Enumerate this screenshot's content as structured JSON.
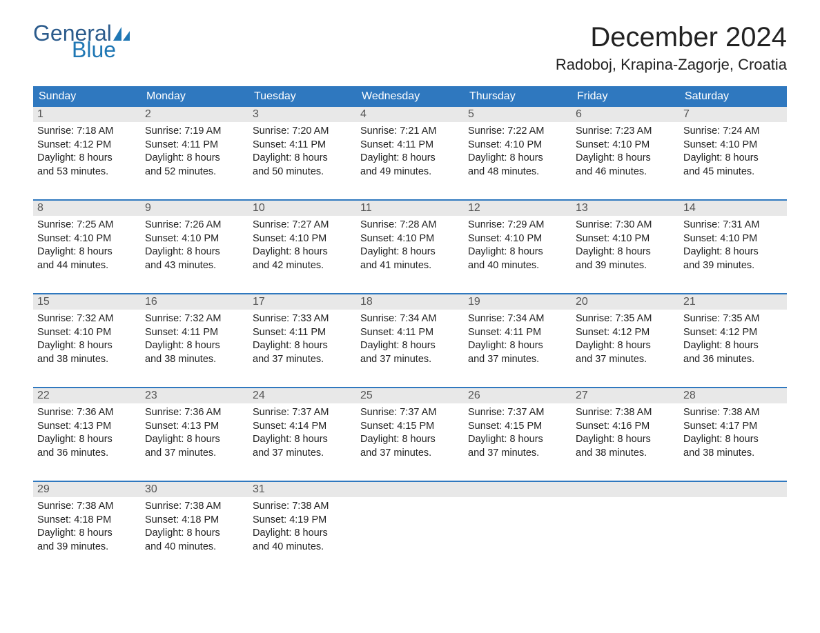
{
  "logo": {
    "word1": "General",
    "word2": "Blue",
    "brand_color": "#1f77b4",
    "dark_color": "#2b5b8c"
  },
  "title": "December 2024",
  "location": "Radoboj, Krapina-Zagorje, Croatia",
  "colors": {
    "header_bg": "#2f78bf",
    "header_text": "#ffffff",
    "daynum_bg": "#e8e8e8",
    "week_border": "#2f78bf",
    "text": "#222222"
  },
  "day_headers": [
    "Sunday",
    "Monday",
    "Tuesday",
    "Wednesday",
    "Thursday",
    "Friday",
    "Saturday"
  ],
  "weeks": [
    [
      {
        "n": "1",
        "sunrise": "Sunrise: 7:18 AM",
        "sunset": "Sunset: 4:12 PM",
        "day1": "Daylight: 8 hours",
        "day2": "and 53 minutes."
      },
      {
        "n": "2",
        "sunrise": "Sunrise: 7:19 AM",
        "sunset": "Sunset: 4:11 PM",
        "day1": "Daylight: 8 hours",
        "day2": "and 52 minutes."
      },
      {
        "n": "3",
        "sunrise": "Sunrise: 7:20 AM",
        "sunset": "Sunset: 4:11 PM",
        "day1": "Daylight: 8 hours",
        "day2": "and 50 minutes."
      },
      {
        "n": "4",
        "sunrise": "Sunrise: 7:21 AM",
        "sunset": "Sunset: 4:11 PM",
        "day1": "Daylight: 8 hours",
        "day2": "and 49 minutes."
      },
      {
        "n": "5",
        "sunrise": "Sunrise: 7:22 AM",
        "sunset": "Sunset: 4:10 PM",
        "day1": "Daylight: 8 hours",
        "day2": "and 48 minutes."
      },
      {
        "n": "6",
        "sunrise": "Sunrise: 7:23 AM",
        "sunset": "Sunset: 4:10 PM",
        "day1": "Daylight: 8 hours",
        "day2": "and 46 minutes."
      },
      {
        "n": "7",
        "sunrise": "Sunrise: 7:24 AM",
        "sunset": "Sunset: 4:10 PM",
        "day1": "Daylight: 8 hours",
        "day2": "and 45 minutes."
      }
    ],
    [
      {
        "n": "8",
        "sunrise": "Sunrise: 7:25 AM",
        "sunset": "Sunset: 4:10 PM",
        "day1": "Daylight: 8 hours",
        "day2": "and 44 minutes."
      },
      {
        "n": "9",
        "sunrise": "Sunrise: 7:26 AM",
        "sunset": "Sunset: 4:10 PM",
        "day1": "Daylight: 8 hours",
        "day2": "and 43 minutes."
      },
      {
        "n": "10",
        "sunrise": "Sunrise: 7:27 AM",
        "sunset": "Sunset: 4:10 PM",
        "day1": "Daylight: 8 hours",
        "day2": "and 42 minutes."
      },
      {
        "n": "11",
        "sunrise": "Sunrise: 7:28 AM",
        "sunset": "Sunset: 4:10 PM",
        "day1": "Daylight: 8 hours",
        "day2": "and 41 minutes."
      },
      {
        "n": "12",
        "sunrise": "Sunrise: 7:29 AM",
        "sunset": "Sunset: 4:10 PM",
        "day1": "Daylight: 8 hours",
        "day2": "and 40 minutes."
      },
      {
        "n": "13",
        "sunrise": "Sunrise: 7:30 AM",
        "sunset": "Sunset: 4:10 PM",
        "day1": "Daylight: 8 hours",
        "day2": "and 39 minutes."
      },
      {
        "n": "14",
        "sunrise": "Sunrise: 7:31 AM",
        "sunset": "Sunset: 4:10 PM",
        "day1": "Daylight: 8 hours",
        "day2": "and 39 minutes."
      }
    ],
    [
      {
        "n": "15",
        "sunrise": "Sunrise: 7:32 AM",
        "sunset": "Sunset: 4:10 PM",
        "day1": "Daylight: 8 hours",
        "day2": "and 38 minutes."
      },
      {
        "n": "16",
        "sunrise": "Sunrise: 7:32 AM",
        "sunset": "Sunset: 4:11 PM",
        "day1": "Daylight: 8 hours",
        "day2": "and 38 minutes."
      },
      {
        "n": "17",
        "sunrise": "Sunrise: 7:33 AM",
        "sunset": "Sunset: 4:11 PM",
        "day1": "Daylight: 8 hours",
        "day2": "and 37 minutes."
      },
      {
        "n": "18",
        "sunrise": "Sunrise: 7:34 AM",
        "sunset": "Sunset: 4:11 PM",
        "day1": "Daylight: 8 hours",
        "day2": "and 37 minutes."
      },
      {
        "n": "19",
        "sunrise": "Sunrise: 7:34 AM",
        "sunset": "Sunset: 4:11 PM",
        "day1": "Daylight: 8 hours",
        "day2": "and 37 minutes."
      },
      {
        "n": "20",
        "sunrise": "Sunrise: 7:35 AM",
        "sunset": "Sunset: 4:12 PM",
        "day1": "Daylight: 8 hours",
        "day2": "and 37 minutes."
      },
      {
        "n": "21",
        "sunrise": "Sunrise: 7:35 AM",
        "sunset": "Sunset: 4:12 PM",
        "day1": "Daylight: 8 hours",
        "day2": "and 36 minutes."
      }
    ],
    [
      {
        "n": "22",
        "sunrise": "Sunrise: 7:36 AM",
        "sunset": "Sunset: 4:13 PM",
        "day1": "Daylight: 8 hours",
        "day2": "and 36 minutes."
      },
      {
        "n": "23",
        "sunrise": "Sunrise: 7:36 AM",
        "sunset": "Sunset: 4:13 PM",
        "day1": "Daylight: 8 hours",
        "day2": "and 37 minutes."
      },
      {
        "n": "24",
        "sunrise": "Sunrise: 7:37 AM",
        "sunset": "Sunset: 4:14 PM",
        "day1": "Daylight: 8 hours",
        "day2": "and 37 minutes."
      },
      {
        "n": "25",
        "sunrise": "Sunrise: 7:37 AM",
        "sunset": "Sunset: 4:15 PM",
        "day1": "Daylight: 8 hours",
        "day2": "and 37 minutes."
      },
      {
        "n": "26",
        "sunrise": "Sunrise: 7:37 AM",
        "sunset": "Sunset: 4:15 PM",
        "day1": "Daylight: 8 hours",
        "day2": "and 37 minutes."
      },
      {
        "n": "27",
        "sunrise": "Sunrise: 7:38 AM",
        "sunset": "Sunset: 4:16 PM",
        "day1": "Daylight: 8 hours",
        "day2": "and 38 minutes."
      },
      {
        "n": "28",
        "sunrise": "Sunrise: 7:38 AM",
        "sunset": "Sunset: 4:17 PM",
        "day1": "Daylight: 8 hours",
        "day2": "and 38 minutes."
      }
    ],
    [
      {
        "n": "29",
        "sunrise": "Sunrise: 7:38 AM",
        "sunset": "Sunset: 4:18 PM",
        "day1": "Daylight: 8 hours",
        "day2": "and 39 minutes."
      },
      {
        "n": "30",
        "sunrise": "Sunrise: 7:38 AM",
        "sunset": "Sunset: 4:18 PM",
        "day1": "Daylight: 8 hours",
        "day2": "and 40 minutes."
      },
      {
        "n": "31",
        "sunrise": "Sunrise: 7:38 AM",
        "sunset": "Sunset: 4:19 PM",
        "day1": "Daylight: 8 hours",
        "day2": "and 40 minutes."
      },
      {
        "empty": true
      },
      {
        "empty": true
      },
      {
        "empty": true
      },
      {
        "empty": true
      }
    ]
  ]
}
